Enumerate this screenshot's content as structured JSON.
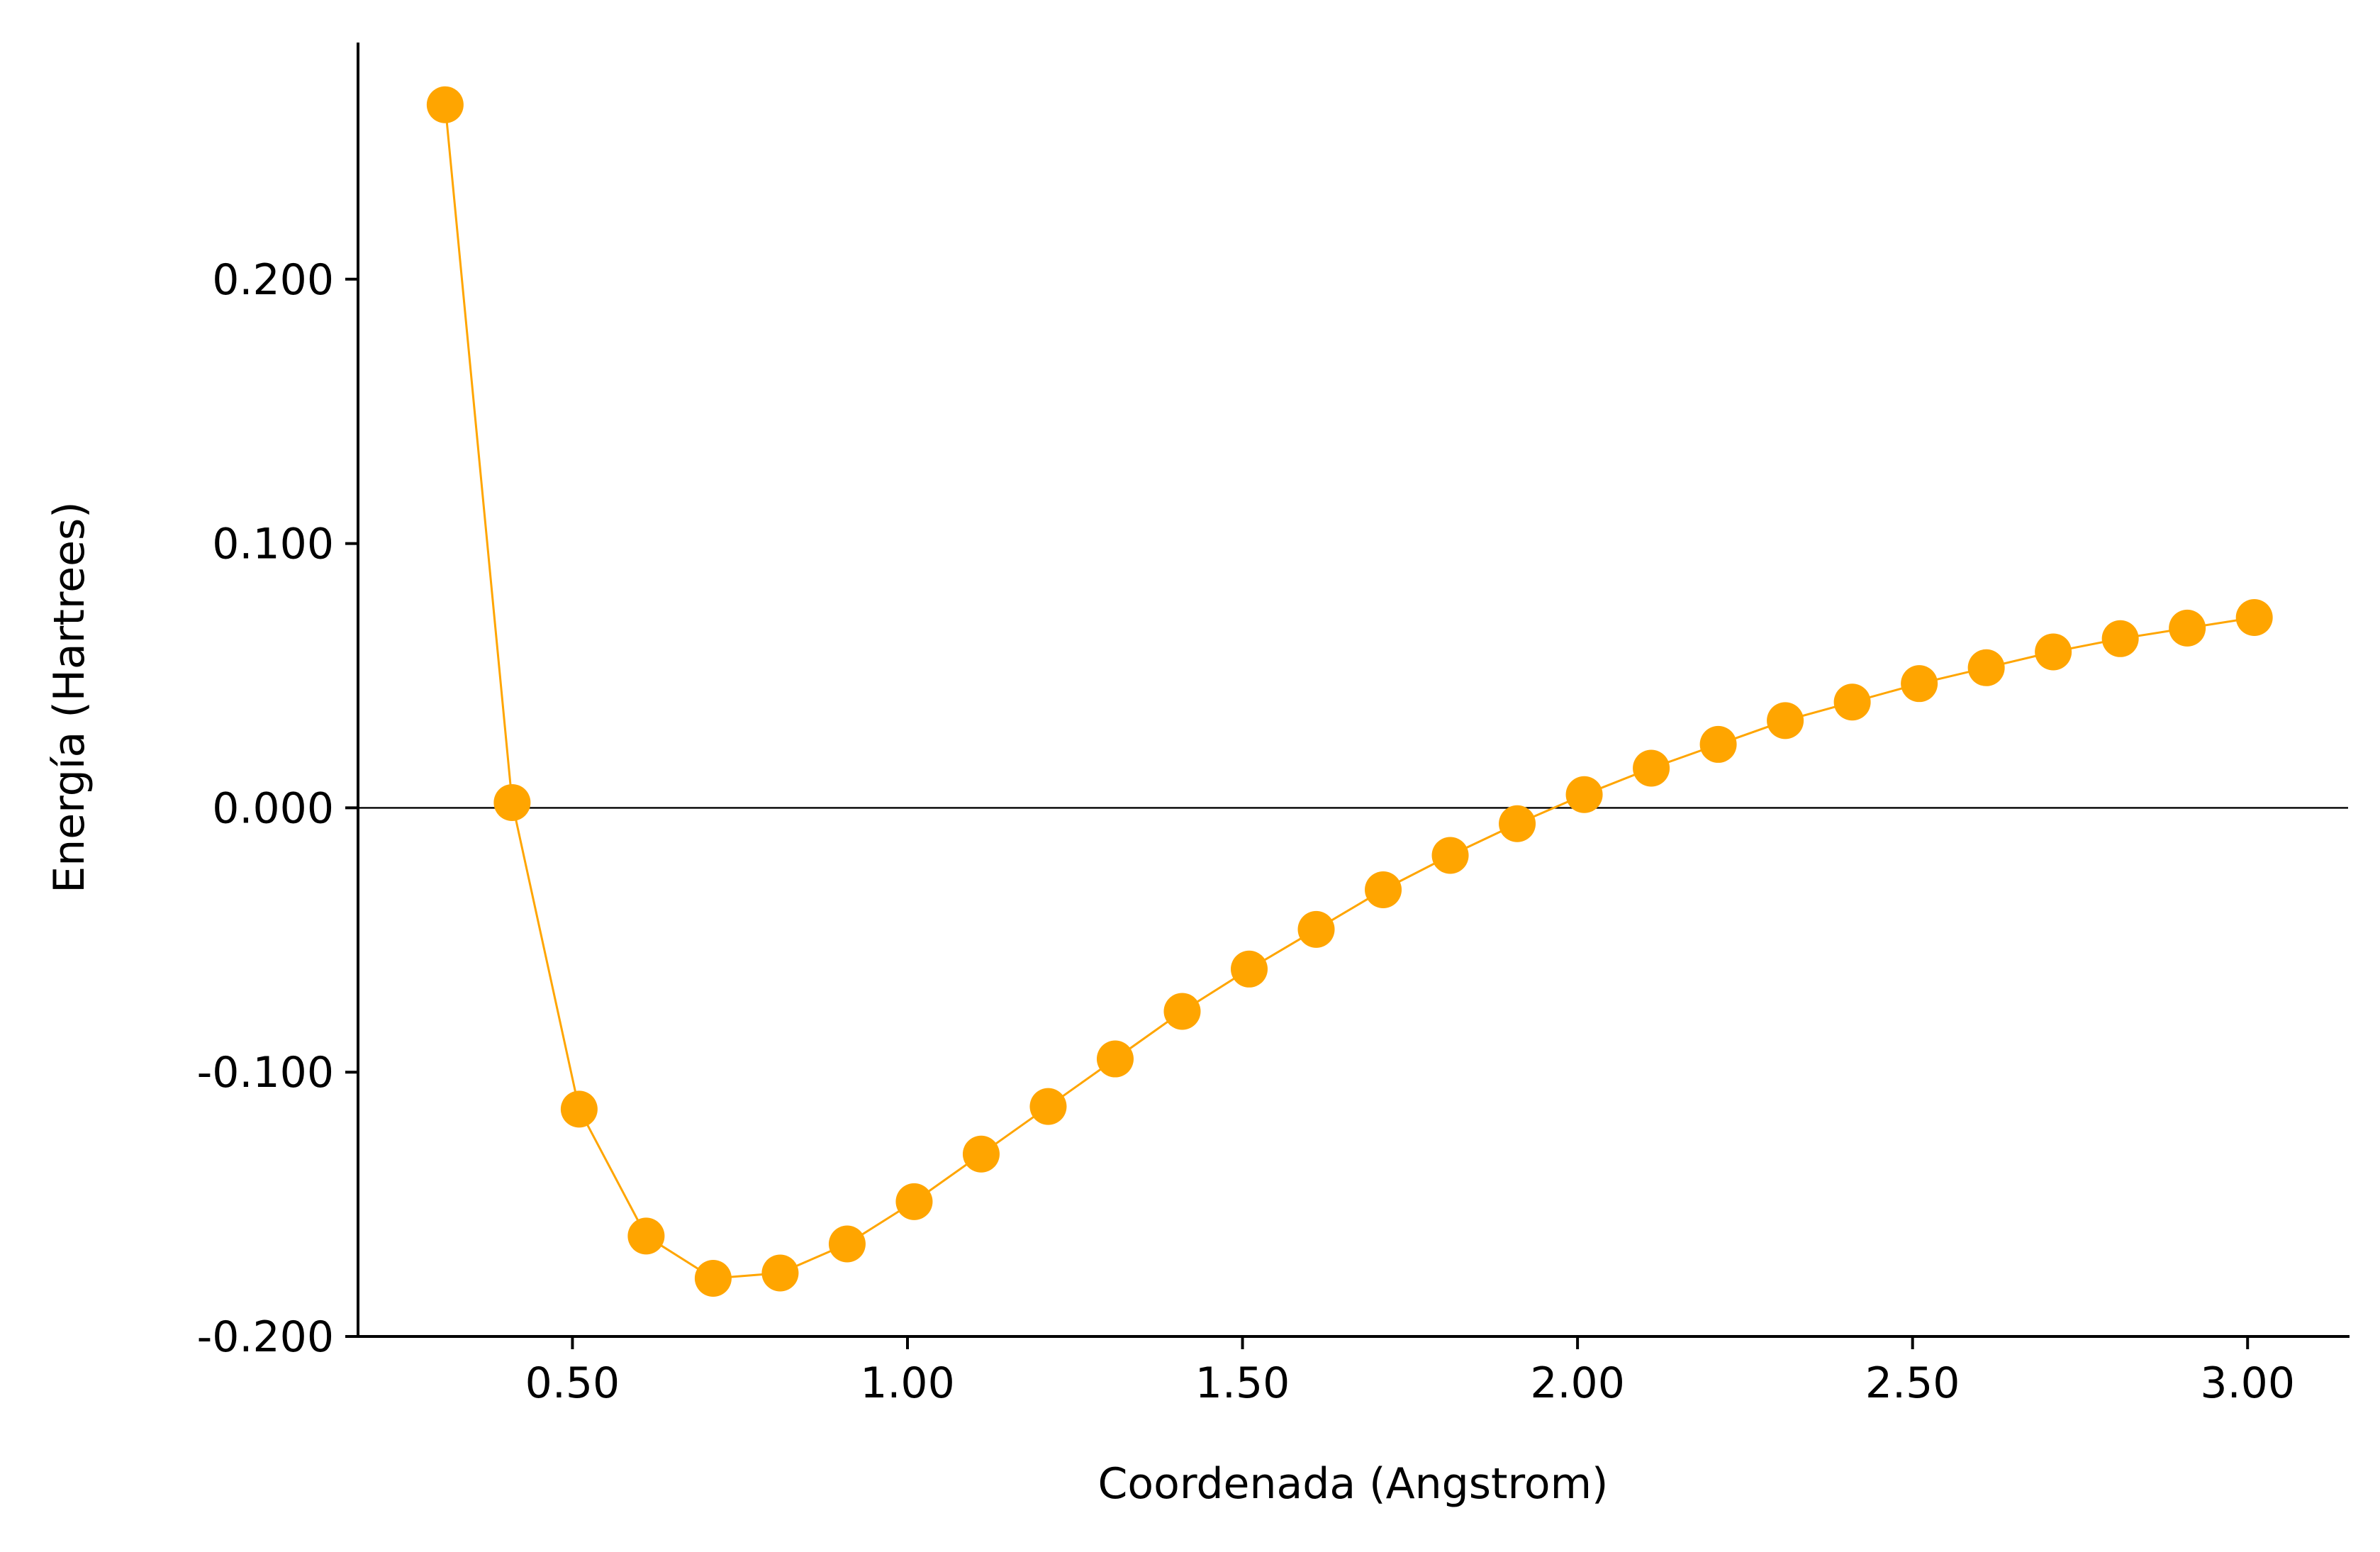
{
  "chart_data": {
    "type": "line",
    "title": "",
    "xlabel": "Coordenada (Angstrom)",
    "ylabel": "Energía (Hartrees)",
    "xlim": [
      0.18,
      3.15
    ],
    "ylim": [
      -0.2,
      0.289
    ],
    "x_ticks": [
      0.5,
      1.0,
      1.5,
      2.0,
      2.5,
      3.0
    ],
    "x_tick_labels": [
      "0.50",
      "1.00",
      "1.50",
      "2.00",
      "2.50",
      "3.00"
    ],
    "y_ticks": [
      -0.2,
      -0.1,
      0.0,
      0.1,
      0.2
    ],
    "y_tick_labels": [
      "-0.200",
      "-0.100",
      "0.000",
      "0.100",
      "0.200"
    ],
    "reference_line_y": 0.0,
    "grid": false,
    "legend": "none",
    "series": [
      {
        "color": "#ffa500",
        "marker": "circle",
        "x": [
          0.31,
          0.41,
          0.51,
          0.61,
          0.71,
          0.81,
          0.91,
          1.01,
          1.11,
          1.21,
          1.31,
          1.41,
          1.51,
          1.61,
          1.71,
          1.81,
          1.91,
          2.01,
          2.11,
          2.21,
          2.31,
          2.41,
          2.51,
          2.61,
          2.71,
          2.81,
          2.91,
          3.01
        ],
        "y": [
          0.266,
          0.002,
          -0.114,
          -0.162,
          -0.178,
          -0.176,
          -0.165,
          -0.149,
          -0.131,
          -0.113,
          -0.095,
          -0.077,
          -0.061,
          -0.046,
          -0.031,
          -0.018,
          -0.006,
          0.005,
          0.015,
          0.024,
          0.033,
          0.04,
          0.047,
          0.053,
          0.059,
          0.064,
          0.068,
          0.072
        ]
      }
    ]
  }
}
